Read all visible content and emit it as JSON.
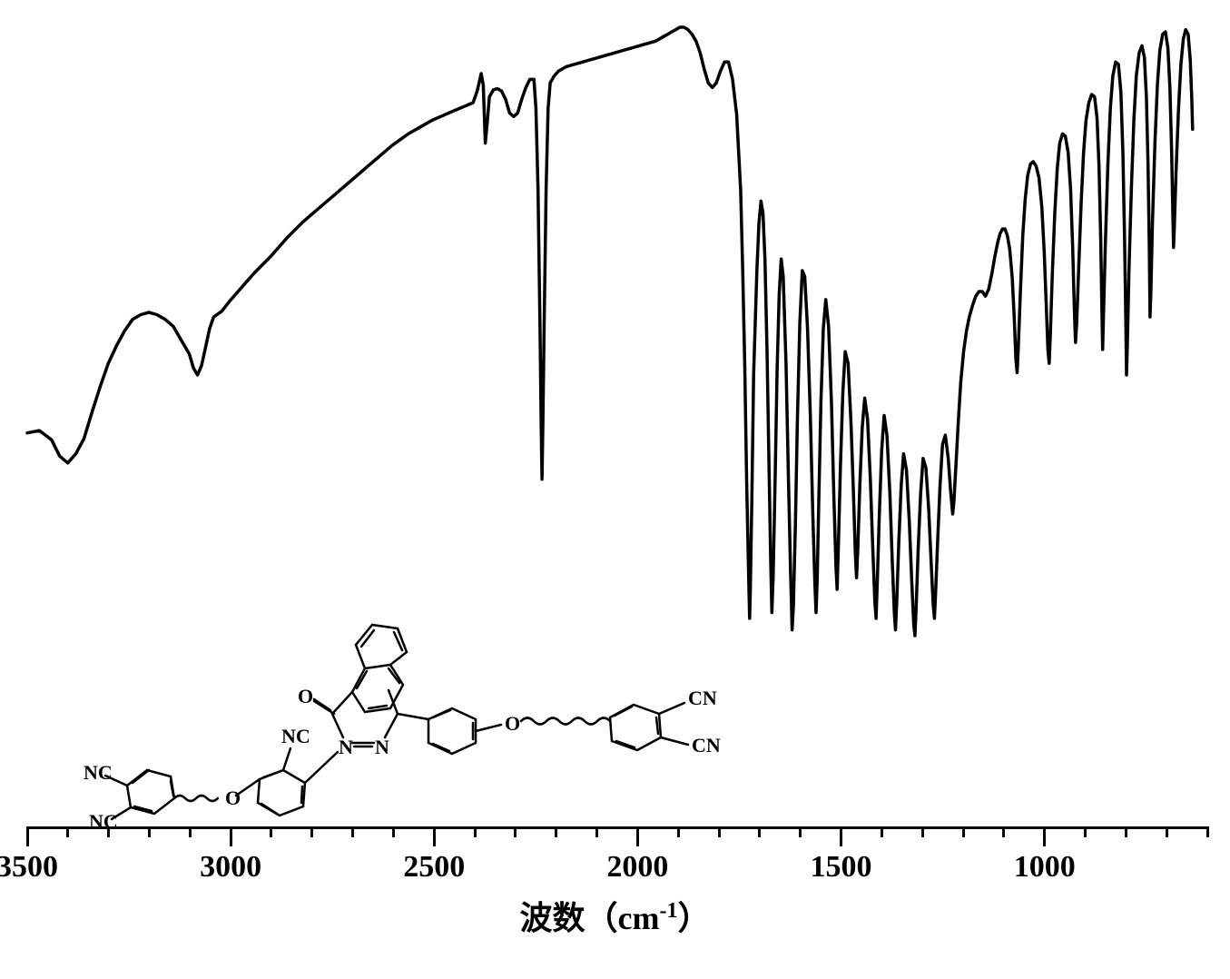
{
  "figure": {
    "type": "line",
    "background_color": "#ffffff",
    "line_color": "#000000",
    "line_width": 3.5,
    "x_axis": {
      "label": "波数（cm",
      "label_exp": "-1",
      "label_suffix": "）",
      "label_fontsize": 36,
      "tick_fontsize": 34,
      "xlim": [
        3500,
        600
      ],
      "major_ticks": [
        3500,
        3000,
        2500,
        2000,
        1500,
        1000
      ],
      "minor_tick_step": 100,
      "tick_color": "#000000"
    },
    "spectrum_points": [
      [
        3500,
        350
      ],
      [
        3470,
        348
      ],
      [
        3440,
        356
      ],
      [
        3420,
        370
      ],
      [
        3400,
        376
      ],
      [
        3380,
        368
      ],
      [
        3360,
        355
      ],
      [
        3340,
        332
      ],
      [
        3320,
        310
      ],
      [
        3300,
        290
      ],
      [
        3280,
        275
      ],
      [
        3260,
        262
      ],
      [
        3240,
        252
      ],
      [
        3220,
        248
      ],
      [
        3200,
        246
      ],
      [
        3180,
        248
      ],
      [
        3160,
        252
      ],
      [
        3140,
        258
      ],
      [
        3120,
        270
      ],
      [
        3100,
        282
      ],
      [
        3090,
        294
      ],
      [
        3080,
        300
      ],
      [
        3070,
        292
      ],
      [
        3060,
        276
      ],
      [
        3050,
        260
      ],
      [
        3040,
        250
      ],
      [
        3020,
        245
      ],
      [
        3000,
        236
      ],
      [
        2980,
        228
      ],
      [
        2960,
        220
      ],
      [
        2940,
        212
      ],
      [
        2920,
        205
      ],
      [
        2900,
        198
      ],
      [
        2880,
        190
      ],
      [
        2860,
        182
      ],
      [
        2840,
        175
      ],
      [
        2820,
        168
      ],
      [
        2800,
        162
      ],
      [
        2780,
        156
      ],
      [
        2760,
        150
      ],
      [
        2740,
        144
      ],
      [
        2720,
        138
      ],
      [
        2700,
        132
      ],
      [
        2680,
        126
      ],
      [
        2660,
        120
      ],
      [
        2640,
        114
      ],
      [
        2620,
        108
      ],
      [
        2600,
        102
      ],
      [
        2580,
        97
      ],
      [
        2560,
        92
      ],
      [
        2540,
        88
      ],
      [
        2520,
        84
      ],
      [
        2500,
        80
      ],
      [
        2480,
        77
      ],
      [
        2460,
        74
      ],
      [
        2440,
        71
      ],
      [
        2420,
        68
      ],
      [
        2400,
        65
      ],
      [
        2390,
        55
      ],
      [
        2380,
        40
      ],
      [
        2375,
        50
      ],
      [
        2370,
        100
      ],
      [
        2365,
        82
      ],
      [
        2360,
        60
      ],
      [
        2350,
        54
      ],
      [
        2340,
        53
      ],
      [
        2330,
        55
      ],
      [
        2320,
        62
      ],
      [
        2310,
        74
      ],
      [
        2300,
        77
      ],
      [
        2290,
        74
      ],
      [
        2280,
        62
      ],
      [
        2270,
        52
      ],
      [
        2260,
        45
      ],
      [
        2250,
        45
      ],
      [
        2245,
        70
      ],
      [
        2240,
        140
      ],
      [
        2235,
        260
      ],
      [
        2232,
        345
      ],
      [
        2230,
        390
      ],
      [
        2228,
        345
      ],
      [
        2225,
        260
      ],
      [
        2220,
        140
      ],
      [
        2215,
        70
      ],
      [
        2210,
        48
      ],
      [
        2200,
        42
      ],
      [
        2190,
        38
      ],
      [
        2180,
        36
      ],
      [
        2170,
        34
      ],
      [
        2160,
        33
      ],
      [
        2150,
        32
      ],
      [
        2140,
        31
      ],
      [
        2130,
        30
      ],
      [
        2120,
        29
      ],
      [
        2110,
        28
      ],
      [
        2100,
        27
      ],
      [
        2090,
        26
      ],
      [
        2080,
        25
      ],
      [
        2070,
        24
      ],
      [
        2060,
        23
      ],
      [
        2050,
        22
      ],
      [
        2040,
        21
      ],
      [
        2030,
        20
      ],
      [
        2020,
        19
      ],
      [
        2010,
        18
      ],
      [
        2000,
        17
      ],
      [
        1990,
        16
      ],
      [
        1980,
        15
      ],
      [
        1970,
        14
      ],
      [
        1960,
        13
      ],
      [
        1950,
        12
      ],
      [
        1940,
        10
      ],
      [
        1930,
        8
      ],
      [
        1920,
        6
      ],
      [
        1910,
        4
      ],
      [
        1900,
        2
      ],
      [
        1890,
        0
      ],
      [
        1880,
        0
      ],
      [
        1870,
        2
      ],
      [
        1860,
        6
      ],
      [
        1850,
        12
      ],
      [
        1840,
        22
      ],
      [
        1830,
        36
      ],
      [
        1820,
        48
      ],
      [
        1810,
        52
      ],
      [
        1800,
        48
      ],
      [
        1790,
        38
      ],
      [
        1780,
        30
      ],
      [
        1770,
        30
      ],
      [
        1760,
        45
      ],
      [
        1750,
        75
      ],
      [
        1740,
        140
      ],
      [
        1735,
        210
      ],
      [
        1730,
        290
      ],
      [
        1725,
        395
      ],
      [
        1720,
        480
      ],
      [
        1718,
        510
      ],
      [
        1716,
        485
      ],
      [
        1712,
        400
      ],
      [
        1708,
        300
      ],
      [
        1700,
        210
      ],
      [
        1695,
        170
      ],
      [
        1690,
        150
      ],
      [
        1685,
        160
      ],
      [
        1680,
        200
      ],
      [
        1675,
        280
      ],
      [
        1670,
        380
      ],
      [
        1666,
        460
      ],
      [
        1663,
        505
      ],
      [
        1660,
        475
      ],
      [
        1655,
        390
      ],
      [
        1650,
        295
      ],
      [
        1645,
        230
      ],
      [
        1640,
        200
      ],
      [
        1635,
        215
      ],
      [
        1628,
        290
      ],
      [
        1622,
        390
      ],
      [
        1617,
        470
      ],
      [
        1613,
        520
      ],
      [
        1610,
        500
      ],
      [
        1605,
        430
      ],
      [
        1600,
        340
      ],
      [
        1594,
        255
      ],
      [
        1588,
        210
      ],
      [
        1582,
        215
      ],
      [
        1575,
        260
      ],
      [
        1568,
        335
      ],
      [
        1562,
        420
      ],
      [
        1557,
        480
      ],
      [
        1554,
        505
      ],
      [
        1551,
        475
      ],
      [
        1547,
        405
      ],
      [
        1542,
        325
      ],
      [
        1536,
        260
      ],
      [
        1530,
        235
      ],
      [
        1523,
        258
      ],
      [
        1516,
        325
      ],
      [
        1510,
        405
      ],
      [
        1505,
        465
      ],
      [
        1502,
        485
      ],
      [
        1499,
        450
      ],
      [
        1494,
        380
      ],
      [
        1488,
        315
      ],
      [
        1482,
        280
      ],
      [
        1475,
        290
      ],
      [
        1468,
        340
      ],
      [
        1462,
        400
      ],
      [
        1457,
        455
      ],
      [
        1454,
        475
      ],
      [
        1451,
        450
      ],
      [
        1446,
        395
      ],
      [
        1440,
        345
      ],
      [
        1434,
        320
      ],
      [
        1427,
        338
      ],
      [
        1420,
        390
      ],
      [
        1414,
        450
      ],
      [
        1409,
        495
      ],
      [
        1406,
        510
      ],
      [
        1403,
        480
      ],
      [
        1398,
        420
      ],
      [
        1392,
        365
      ],
      [
        1386,
        335
      ],
      [
        1379,
        352
      ],
      [
        1372,
        402
      ],
      [
        1366,
        460
      ],
      [
        1361,
        505
      ],
      [
        1358,
        520
      ],
      [
        1355,
        495
      ],
      [
        1350,
        445
      ],
      [
        1344,
        395
      ],
      [
        1338,
        368
      ],
      [
        1331,
        382
      ],
      [
        1324,
        426
      ],
      [
        1318,
        478
      ],
      [
        1313,
        515
      ],
      [
        1310,
        525
      ],
      [
        1307,
        500
      ],
      [
        1302,
        450
      ],
      [
        1296,
        402
      ],
      [
        1290,
        372
      ],
      [
        1283,
        380
      ],
      [
        1276,
        416
      ],
      [
        1270,
        462
      ],
      [
        1265,
        498
      ],
      [
        1262,
        510
      ],
      [
        1259,
        488
      ],
      [
        1254,
        442
      ],
      [
        1248,
        395
      ],
      [
        1242,
        360
      ],
      [
        1235,
        352
      ],
      [
        1228,
        372
      ],
      [
        1222,
        400
      ],
      [
        1217,
        420
      ],
      [
        1214,
        410
      ],
      [
        1209,
        378
      ],
      [
        1203,
        340
      ],
      [
        1197,
        306
      ],
      [
        1190,
        280
      ],
      [
        1183,
        262
      ],
      [
        1176,
        250
      ],
      [
        1168,
        240
      ],
      [
        1160,
        232
      ],
      [
        1152,
        228
      ],
      [
        1144,
        228
      ],
      [
        1136,
        232
      ],
      [
        1128,
        226
      ],
      [
        1120,
        212
      ],
      [
        1113,
        198
      ],
      [
        1106,
        186
      ],
      [
        1100,
        178
      ],
      [
        1094,
        174
      ],
      [
        1088,
        174
      ],
      [
        1082,
        180
      ],
      [
        1076,
        192
      ],
      [
        1070,
        216
      ],
      [
        1065,
        252
      ],
      [
        1061,
        286
      ],
      [
        1058,
        298
      ],
      [
        1055,
        276
      ],
      [
        1050,
        228
      ],
      [
        1044,
        180
      ],
      [
        1038,
        148
      ],
      [
        1032,
        128
      ],
      [
        1025,
        118
      ],
      [
        1018,
        116
      ],
      [
        1011,
        120
      ],
      [
        1004,
        130
      ],
      [
        997,
        155
      ],
      [
        991,
        195
      ],
      [
        986,
        240
      ],
      [
        982,
        278
      ],
      [
        979,
        290
      ],
      [
        976,
        265
      ],
      [
        971,
        212
      ],
      [
        965,
        160
      ],
      [
        959,
        122
      ],
      [
        953,
        100
      ],
      [
        946,
        92
      ],
      [
        939,
        94
      ],
      [
        932,
        108
      ],
      [
        926,
        140
      ],
      [
        921,
        190
      ],
      [
        917,
        240
      ],
      [
        914,
        272
      ],
      [
        911,
        256
      ],
      [
        906,
        206
      ],
      [
        900,
        152
      ],
      [
        894,
        108
      ],
      [
        888,
        80
      ],
      [
        881,
        65
      ],
      [
        874,
        58
      ],
      [
        867,
        60
      ],
      [
        861,
        78
      ],
      [
        856,
        120
      ],
      [
        852,
        180
      ],
      [
        849,
        240
      ],
      [
        847,
        278
      ],
      [
        845,
        250
      ],
      [
        840,
        184
      ],
      [
        834,
        118
      ],
      [
        828,
        70
      ],
      [
        822,
        42
      ],
      [
        815,
        30
      ],
      [
        808,
        32
      ],
      [
        802,
        56
      ],
      [
        797,
        108
      ],
      [
        793,
        180
      ],
      [
        790,
        252
      ],
      [
        788,
        300
      ],
      [
        786,
        275
      ],
      [
        782,
        210
      ],
      [
        776,
        138
      ],
      [
        770,
        80
      ],
      [
        764,
        42
      ],
      [
        757,
        22
      ],
      [
        750,
        16
      ],
      [
        744,
        26
      ],
      [
        739,
        60
      ],
      [
        735,
        118
      ],
      [
        732,
        190
      ],
      [
        730,
        250
      ],
      [
        728,
        230
      ],
      [
        724,
        168
      ],
      [
        718,
        100
      ],
      [
        712,
        50
      ],
      [
        706,
        20
      ],
      [
        699,
        6
      ],
      [
        692,
        4
      ],
      [
        686,
        18
      ],
      [
        681,
        52
      ],
      [
        677,
        104
      ],
      [
        674,
        160
      ],
      [
        672,
        190
      ],
      [
        670,
        172
      ],
      [
        666,
        126
      ],
      [
        660,
        72
      ],
      [
        654,
        32
      ],
      [
        648,
        10
      ],
      [
        642,
        2
      ],
      [
        636,
        6
      ],
      [
        631,
        28
      ],
      [
        627,
        62
      ],
      [
        625,
        88
      ]
    ]
  },
  "structure": {
    "labels": {
      "CN": "CN",
      "NC": "NC",
      "O": "O",
      "N": "N"
    }
  }
}
